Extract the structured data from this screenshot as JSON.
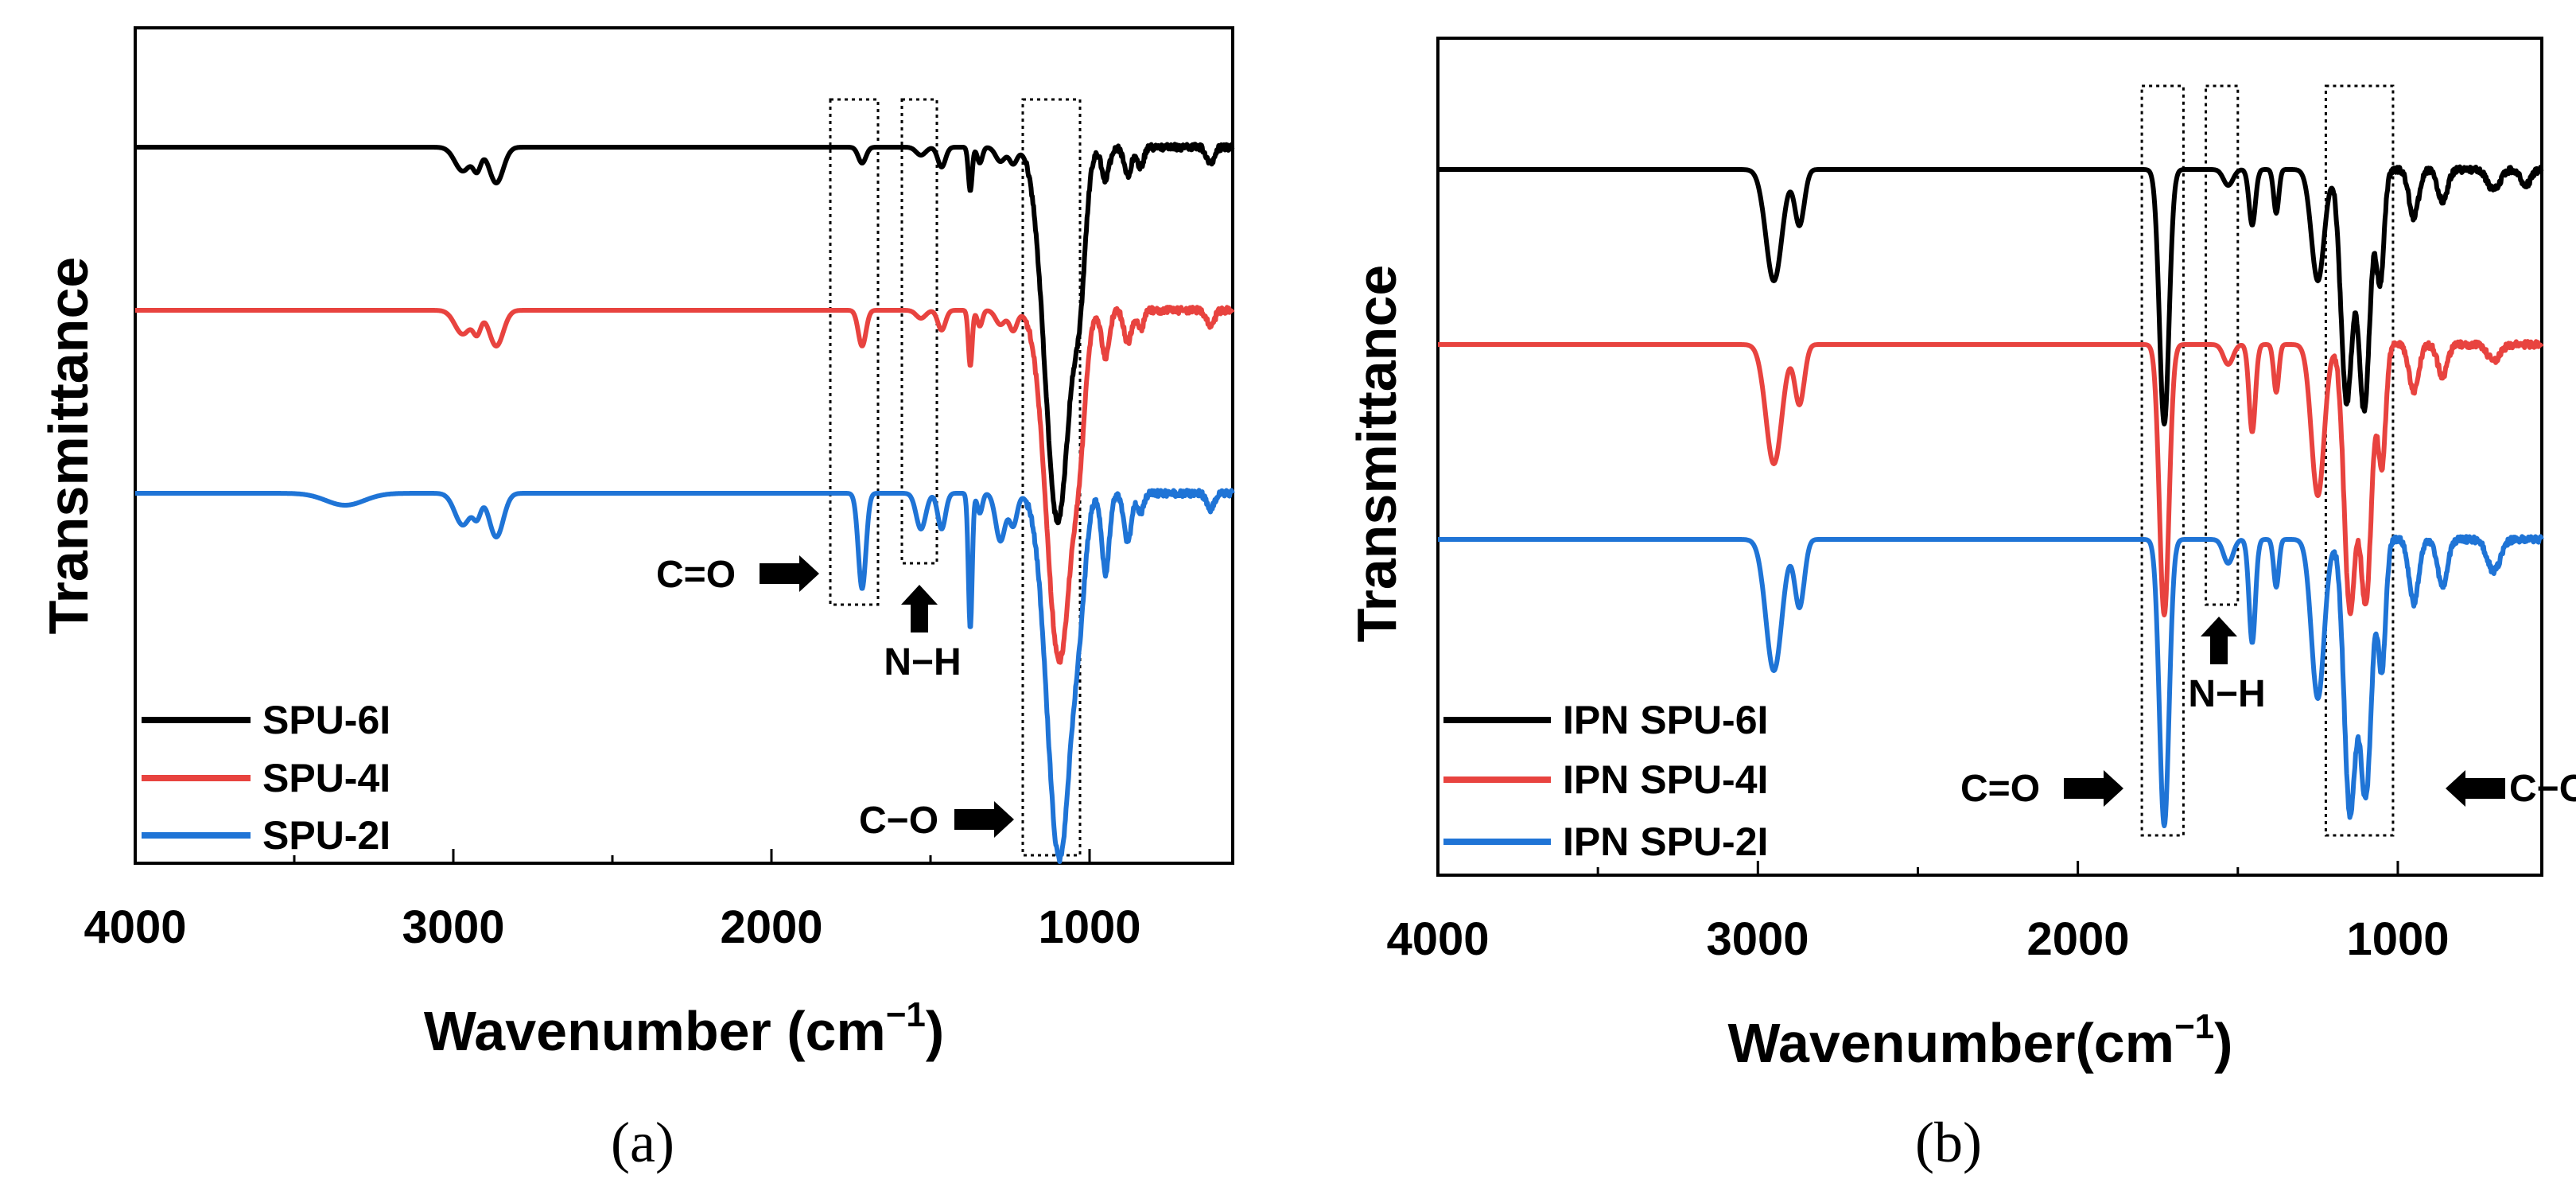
{
  "chart_data": [
    {
      "type": "line",
      "panel_label": "(a)",
      "xlabel": "Wavenumber (cm",
      "xlabel_sup": "−1",
      "xlabel_close": ")",
      "ylabel": "Transmittance",
      "xlim": [
        4000,
        550
      ],
      "x_reversed": true,
      "x_ticks": [
        4000,
        3000,
        2000,
        1000
      ],
      "x_tick_labels": [
        "4000",
        "3000",
        "2000",
        "1000"
      ],
      "y_ticks_shown": false,
      "grid": false,
      "legend_position": "bottom-left",
      "series": [
        {
          "name": "SPU-6I",
          "color": "#000000",
          "baseline": 150,
          "peaks": [
            [
              2970,
              30,
              25
            ],
            [
              2925,
              25,
              12
            ],
            [
              2865,
              45,
              22
            ],
            [
              1715,
              20,
              12
            ],
            [
              1530,
              10,
              15
            ],
            [
              1465,
              25,
              12
            ],
            [
              1375,
              55,
              6
            ],
            [
              1345,
              20,
              8
            ],
            [
              1280,
              18,
              15
            ],
            [
              1240,
              20,
              12
            ],
            [
              1100,
              470,
              40
            ],
            [
              1030,
              120,
              18
            ],
            [
              950,
              40,
              12
            ],
            [
              880,
              35,
              12
            ],
            [
              840,
              25,
              10
            ],
            [
              620,
              20,
              12
            ]
          ]
        },
        {
          "name": "SPU-4I",
          "color": "#e8433f",
          "baseline": 355,
          "peaks": [
            [
              2970,
              30,
              25
            ],
            [
              2925,
              25,
              12
            ],
            [
              2865,
              45,
              22
            ],
            [
              1715,
              45,
              12
            ],
            [
              1530,
              10,
              15
            ],
            [
              1465,
              25,
              12
            ],
            [
              1375,
              70,
              6
            ],
            [
              1345,
              20,
              8
            ],
            [
              1280,
              18,
              15
            ],
            [
              1240,
              25,
              12
            ],
            [
              1095,
              440,
              40
            ],
            [
              1030,
              90,
              18
            ],
            [
              950,
              60,
              12
            ],
            [
              880,
              40,
              12
            ],
            [
              840,
              25,
              10
            ],
            [
              620,
              20,
              12
            ]
          ]
        },
        {
          "name": "SPU-2I",
          "color": "#1f74d6",
          "baseline": 585,
          "peaks": [
            [
              3340,
              15,
              60
            ],
            [
              2970,
              40,
              25
            ],
            [
              2925,
              25,
              12
            ],
            [
              2865,
              55,
              22
            ],
            [
              1715,
              120,
              12
            ],
            [
              1530,
              45,
              15
            ],
            [
              1465,
              45,
              12
            ],
            [
              1375,
              170,
              6
            ],
            [
              1345,
              25,
              8
            ],
            [
              1280,
              60,
              15
            ],
            [
              1240,
              40,
              12
            ],
            [
              1095,
              460,
              38
            ],
            [
              1030,
              80,
              18
            ],
            [
              950,
              100,
              12
            ],
            [
              880,
              60,
              12
            ],
            [
              840,
              25,
              10
            ],
            [
              620,
              20,
              12
            ]
          ]
        }
      ],
      "annotations": {
        "co_label": "C=O",
        "nh_label": "N−H",
        "coo_label": "C−O"
      }
    },
    {
      "type": "line",
      "panel_label": "(b)",
      "xlabel": "Wavenumber(cm",
      "xlabel_sup": "−1",
      "xlabel_close": ")",
      "ylabel": "Transmittance",
      "xlim": [
        4000,
        550
      ],
      "x_reversed": true,
      "x_ticks": [
        4000,
        3000,
        2000,
        1000
      ],
      "x_tick_labels": [
        "4000",
        "3000",
        "2000",
        "1000"
      ],
      "y_ticks_shown": false,
      "grid": false,
      "legend_position": "bottom-left",
      "series": [
        {
          "name": "IPN SPU-6I",
          "color": "#000000",
          "baseline": 165,
          "peaks": [
            [
              2950,
              140,
              25
            ],
            [
              2870,
              70,
              15
            ],
            [
              1730,
              320,
              15
            ],
            [
              1530,
              20,
              15
            ],
            [
              1455,
              70,
              10
            ],
            [
              1380,
              55,
              8
            ],
            [
              1250,
              140,
              20
            ],
            [
              1160,
              290,
              18
            ],
            [
              1105,
              300,
              18
            ],
            [
              1055,
              140,
              12
            ],
            [
              950,
              60,
              15
            ],
            [
              860,
              40,
              15
            ],
            [
              700,
              25,
              20
            ],
            [
              600,
              20,
              15
            ]
          ]
        },
        {
          "name": "IPN SPU-4I",
          "color": "#e8433f",
          "baseline": 385,
          "peaks": [
            [
              2950,
              150,
              25
            ],
            [
              2870,
              75,
              15
            ],
            [
              1730,
              340,
              15
            ],
            [
              1530,
              25,
              15
            ],
            [
              1455,
              110,
              10
            ],
            [
              1380,
              60,
              8
            ],
            [
              1250,
              190,
              20
            ],
            [
              1150,
              330,
              18
            ],
            [
              1100,
              320,
              18
            ],
            [
              1050,
              150,
              12
            ],
            [
              950,
              60,
              15
            ],
            [
              860,
              40,
              15
            ],
            [
              700,
              20,
              20
            ]
          ]
        },
        {
          "name": "IPN SPU-2I",
          "color": "#1f74d6",
          "baseline": 630,
          "peaks": [
            [
              2950,
              165,
              25
            ],
            [
              2870,
              85,
              15
            ],
            [
              1730,
              360,
              15
            ],
            [
              1530,
              30,
              15
            ],
            [
              1455,
              130,
              10
            ],
            [
              1380,
              60,
              8
            ],
            [
              1250,
              200,
              20
            ],
            [
              1150,
              340,
              18
            ],
            [
              1100,
              320,
              18
            ],
            [
              1050,
              160,
              12
            ],
            [
              950,
              80,
              15
            ],
            [
              860,
              60,
              15
            ],
            [
              700,
              40,
              20
            ]
          ]
        }
      ],
      "annotations": {
        "co_label": "C=O",
        "nh_label": "N−H",
        "coo_label": "C−O"
      }
    }
  ]
}
